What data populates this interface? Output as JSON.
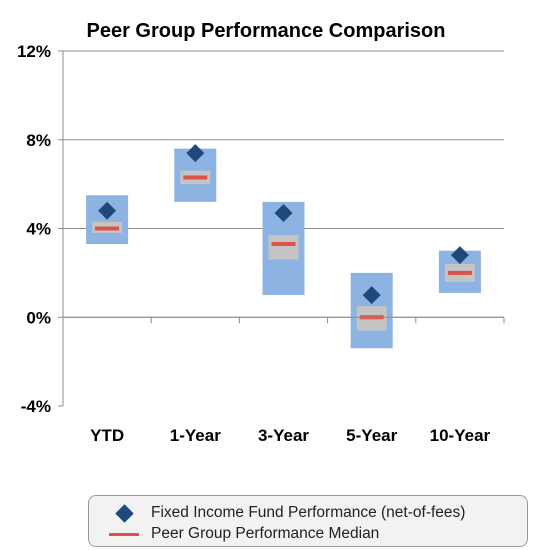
{
  "chart_data": {
    "type": "box-range",
    "title": "Peer Group Performance Comparison",
    "categories": [
      "YTD",
      "1-Year",
      "3-Year",
      "5-Year",
      "10-Year"
    ],
    "yticks": [
      "12%",
      "8%",
      "4%",
      "0%",
      "-4%"
    ],
    "ylim": [
      -4,
      12
    ],
    "grid": true,
    "peer_range": {
      "low": [
        3.3,
        5.2,
        1.0,
        -1.4,
        1.1
      ],
      "high": [
        5.5,
        7.6,
        5.2,
        2.0,
        3.0
      ]
    },
    "inner_range": {
      "low": [
        3.8,
        6.0,
        2.6,
        -0.6,
        1.6
      ],
      "high": [
        4.3,
        6.6,
        3.7,
        0.5,
        2.4
      ]
    },
    "series": [
      {
        "name": "Fixed Income Fund Performance (net-of-fees)",
        "values": [
          4.8,
          7.4,
          4.7,
          1.0,
          2.8
        ]
      },
      {
        "name": "Peer Group Performance Median",
        "values": [
          4.0,
          6.3,
          3.3,
          0.0,
          2.0
        ]
      }
    ],
    "legend_position": "bottom",
    "colors": {
      "range": "#8db3e2",
      "inner": "#c4c4c4",
      "fund": "#1f497d",
      "median": "#d9534a"
    }
  }
}
